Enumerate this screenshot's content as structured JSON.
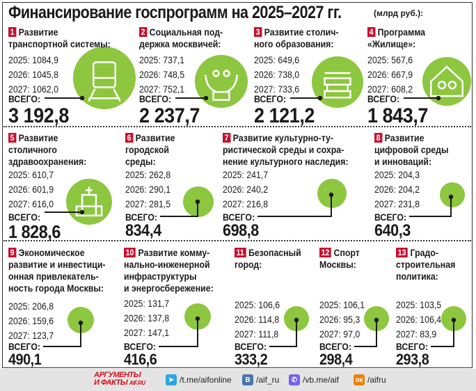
{
  "title": "Финансирование госпрограмм на 2025–2027 гг.",
  "unit": "(млрд руб.):",
  "colors": {
    "accent_green": "#8dc63f",
    "badge_red": "#c8102e",
    "footer_bg": "#e4e4e4"
  },
  "total_label": "ВСЕГО:",
  "programs": [
    {
      "num": "1",
      "title": "Развитие\nтранспортной системы:",
      "years": [
        "2025: 1084,9",
        "2026: 1045,8",
        "2027: 1062,0"
      ],
      "total": "3 192,8",
      "icon": "train-icon"
    },
    {
      "num": "2",
      "title": "Социальная под-\nдержка москвичей:",
      "years": [
        "2025: 737,1",
        "2026: 748,5",
        "2027: 752,1"
      ],
      "total": "2 237,7",
      "icon": "hands-people-icon"
    },
    {
      "num": "3",
      "title": "Развитие столич-\nного образования:",
      "years": [
        "2025: 649,6",
        "2026: 738,0",
        "2027: 733,6"
      ],
      "total": "2 121,2",
      "icon": "books-graduation-cap-icon"
    },
    {
      "num": "4",
      "title": "Программа\n«Жилище»:",
      "years": [
        "2025: 567,6",
        "2026: 667,9",
        "2027: 608,2"
      ],
      "total": "1 843,7",
      "icon": "house-family-icon"
    },
    {
      "num": "5",
      "title": "Развитие\nстоличного\nздравоохранения:",
      "years": [
        "2025: 610,7",
        "2026: 601,9",
        "2027: 616,0"
      ],
      "total": "1 828,6",
      "icon": "hospital-icon"
    },
    {
      "num": "6",
      "title": "Развитие\nгородской\nсреды:",
      "years": [
        "2025: 262,8",
        "2026: 290,1",
        "2027: 281,5"
      ],
      "total": "834,4"
    },
    {
      "num": "7",
      "title": "Развитие культурно-ту-\nристической среды и сохра-\nнение культурного наследия:",
      "years": [
        "2025: 241,7",
        "2026: 240,2",
        "2027: 216,8"
      ],
      "total": "698,8"
    },
    {
      "num": "8",
      "title": "Развитие\nцифровой среды\nи инноваций:",
      "years": [
        "2025: 204,3",
        "2026: 204,2",
        "2027: 231,8"
      ],
      "total": "640,3"
    },
    {
      "num": "9",
      "title": "Экономическое\nразвитие и инвестици-\nонная привлекатель-\nность города Москвы:",
      "years": [
        "2025: 206,8",
        "2026: 159,6",
        "2027: 123,7"
      ],
      "total": "490,1"
    },
    {
      "num": "10",
      "title": "Развитие комму-\nнально-инженерной\nинфраструктуры\nи энергосбережение:",
      "years": [
        "2025: 131,7",
        "2026: 137,8",
        "2027: 147,1"
      ],
      "total": "416,6"
    },
    {
      "num": "11",
      "title": "Безопасный\nгород:",
      "years": [
        "2025: 106,6",
        "2026: 114,8",
        "2027: 111,8"
      ],
      "total": "333,2"
    },
    {
      "num": "12",
      "title": "Спорт\nМосквы:",
      "years": [
        "2025: 106,1",
        "2026: 95,3",
        "2027: 97,0"
      ],
      "total": "298,4"
    },
    {
      "num": "13",
      "title": "Градо-\nстроительная\nполитика:",
      "years": [
        "2025: 103,5",
        "2026: 106,4",
        "2027: 83,9"
      ],
      "total": "293,8"
    }
  ],
  "footer": {
    "logo": "АРГУМЕНТЫ И ФАКТЫ AIF.RU",
    "logo_line1": "АРГУМЕНТЫ",
    "logo_line2": "И ФАКТЫ",
    "logo_site": "AIF.RU",
    "links": [
      {
        "icon": "telegram-icon",
        "label": "/t.me/aifonline",
        "color": "#2ca5e0"
      },
      {
        "icon": "vk-icon",
        "label": "/aif_ru",
        "color": "#4a76a8"
      },
      {
        "icon": "viber-icon",
        "label": "/vb.me/aif",
        "color": "#7360f2"
      },
      {
        "icon": "odnoklassniki-icon",
        "label": "/aifru",
        "color": "#ee8208"
      }
    ]
  }
}
